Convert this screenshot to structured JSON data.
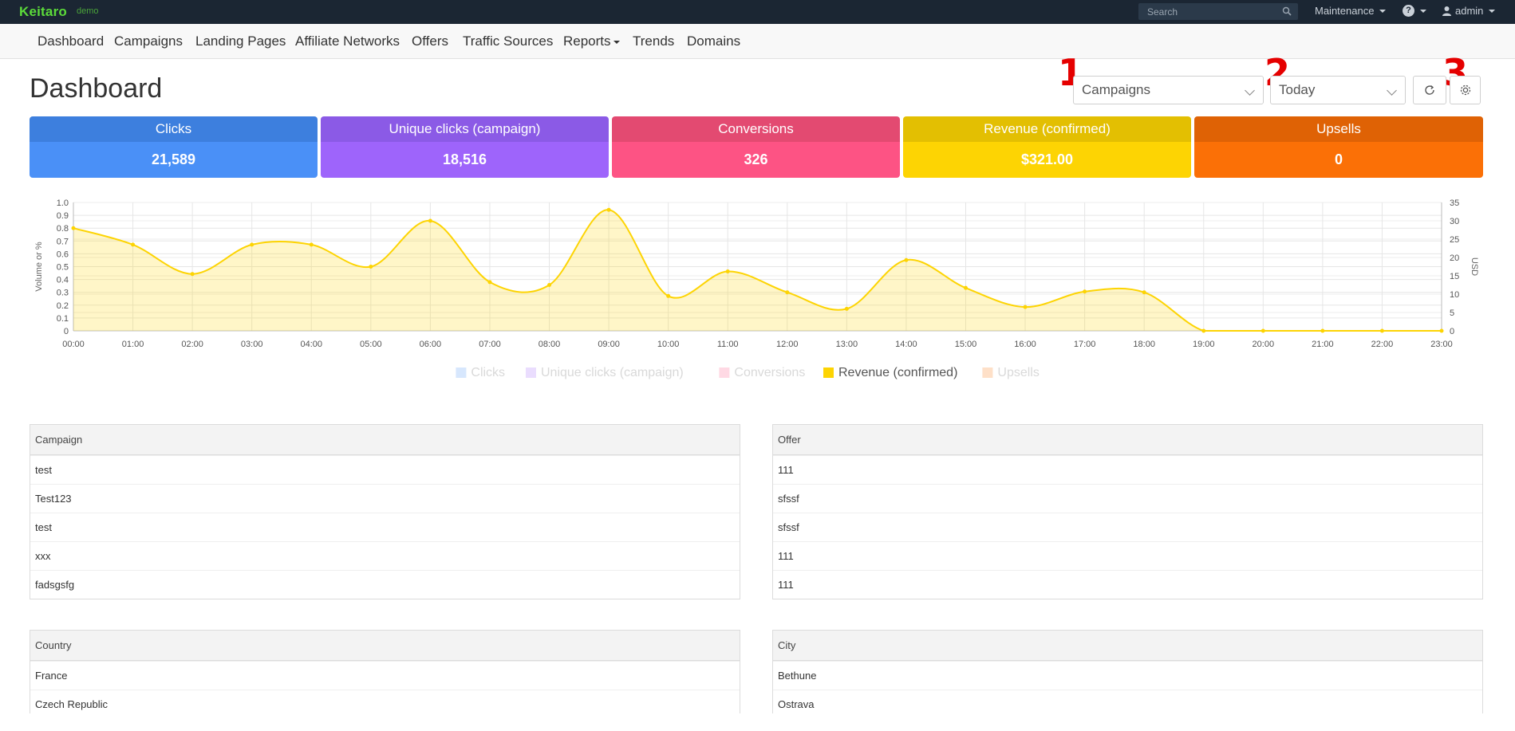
{
  "brand": {
    "name": "Keitaro",
    "sub": "demo"
  },
  "topbar": {
    "search_placeholder": "Search",
    "maintenance": "Maintenance",
    "help": "?",
    "user": "admin"
  },
  "nav": [
    "Dashboard",
    "Campaigns",
    "Landing Pages",
    "Affiliate Networks",
    "Offers",
    "Traffic Sources",
    "Reports",
    "Trends",
    "Domains"
  ],
  "page_title": "Dashboard",
  "controls": {
    "entity_select": "Campaigns",
    "period_select": "Today",
    "markers": [
      "1",
      "2",
      "3"
    ]
  },
  "tiles": [
    {
      "label": "Clicks",
      "value": "21,589",
      "head_color": "#3d7fde",
      "body_color": "#4a90f7"
    },
    {
      "label": "Unique clicks (campaign)",
      "value": "18,516",
      "head_color": "#8b5ae6",
      "body_color": "#9e64fb"
    },
    {
      "label": "Conversions",
      "value": "326",
      "head_color": "#e34a71",
      "body_color": "#fd5384"
    },
    {
      "label": "Revenue (confirmed)",
      "value": "$321.00",
      "head_color": "#e3bf02",
      "body_color": "#fdd403"
    },
    {
      "label": "Upsells",
      "value": "0",
      "head_color": "#df6205",
      "body_color": "#fb7006"
    }
  ],
  "chart_data": {
    "type": "area",
    "x": [
      "00:00",
      "01:00",
      "02:00",
      "03:00",
      "04:00",
      "05:00",
      "06:00",
      "07:00",
      "08:00",
      "09:00",
      "10:00",
      "11:00",
      "12:00",
      "13:00",
      "14:00",
      "15:00",
      "16:00",
      "17:00",
      "18:00",
      "19:00",
      "20:00",
      "21:00",
      "22:00",
      "23:00"
    ],
    "series": [
      {
        "name": "Revenue (confirmed)",
        "axis": "right",
        "color": "#fdd403",
        "values": [
          28,
          23.5,
          15.5,
          23.5,
          23.5,
          17.5,
          30,
          13.3,
          12.5,
          33,
          9.5,
          16.2,
          10.5,
          6,
          19.3,
          11.7,
          6.5,
          10.7,
          10.5,
          0,
          0,
          0,
          0,
          0
        ]
      }
    ],
    "legend": [
      {
        "name": "Clicks",
        "color": "#4a90f7",
        "active": false
      },
      {
        "name": "Unique clicks (campaign)",
        "color": "#9e64fb",
        "active": false
      },
      {
        "name": "Conversions",
        "color": "#fd5384",
        "active": false
      },
      {
        "name": "Revenue (confirmed)",
        "color": "#fdd403",
        "active": true
      },
      {
        "name": "Upsells",
        "color": "#fb7006",
        "active": false
      }
    ],
    "ylabel_left": "Volume or %",
    "ylabel_right": "USD",
    "yticks_left": [
      "1.0",
      "0.9",
      "0.8",
      "0.7",
      "0.6",
      "0.5",
      "0.4",
      "0.3",
      "0.2",
      "0.1",
      "0"
    ],
    "yticks_right": [
      "35",
      "30",
      "25",
      "20",
      "15",
      "10",
      "5",
      "0"
    ],
    "ylim_left": [
      0,
      1
    ],
    "ylim_right": [
      0,
      35
    ],
    "grid": true,
    "legend_position": "bottom"
  },
  "tables": {
    "campaign": {
      "header": "Campaign",
      "rows": [
        "test",
        "Test123",
        "test",
        "xxx",
        "fadsgsfg"
      ]
    },
    "offer": {
      "header": "Offer",
      "rows": [
        "111",
        "sfssf",
        "sfssf",
        "111",
        "111"
      ]
    },
    "country": {
      "header": "Country",
      "rows": [
        "France",
        "Czech Republic"
      ]
    },
    "city": {
      "header": "City",
      "rows": [
        "Bethune",
        "Ostrava"
      ]
    }
  }
}
